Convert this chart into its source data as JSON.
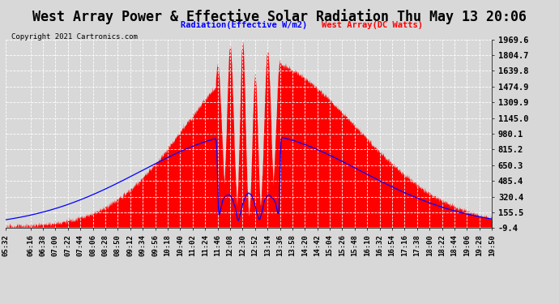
{
  "title": "West Array Power & Effective Solar Radiation Thu May 13 20:06",
  "copyright": "Copyright 2021 Cartronics.com",
  "legend_radiation": "Radiation(Effective W/m2)",
  "legend_west": "West Array(DC Watts)",
  "legend_radiation_color": "blue",
  "legend_west_color": "red",
  "ymin": -9.4,
  "ymax": 1969.6,
  "yticks": [
    -9.4,
    155.5,
    320.4,
    485.4,
    650.3,
    815.2,
    980.1,
    1145.0,
    1309.9,
    1474.9,
    1639.8,
    1804.7,
    1969.6
  ],
  "background_color": "#d8d8d8",
  "plot_bg_color": "#d8d8d8",
  "grid_color": "white",
  "title_color": "black",
  "title_fontsize": 12,
  "xlabel_fontsize": 6.5,
  "ylabel_fontsize": 7.5,
  "xtick_labels": [
    "05:32",
    "06:16",
    "06:38",
    "07:00",
    "07:22",
    "07:44",
    "08:06",
    "08:28",
    "08:50",
    "09:12",
    "09:34",
    "09:56",
    "10:18",
    "10:40",
    "11:02",
    "11:24",
    "11:46",
    "12:08",
    "12:30",
    "12:52",
    "13:14",
    "13:36",
    "13:58",
    "14:20",
    "14:42",
    "15:04",
    "15:26",
    "15:48",
    "16:10",
    "16:32",
    "16:54",
    "17:16",
    "17:38",
    "18:00",
    "18:22",
    "18:44",
    "19:06",
    "19:28",
    "19:50"
  ]
}
